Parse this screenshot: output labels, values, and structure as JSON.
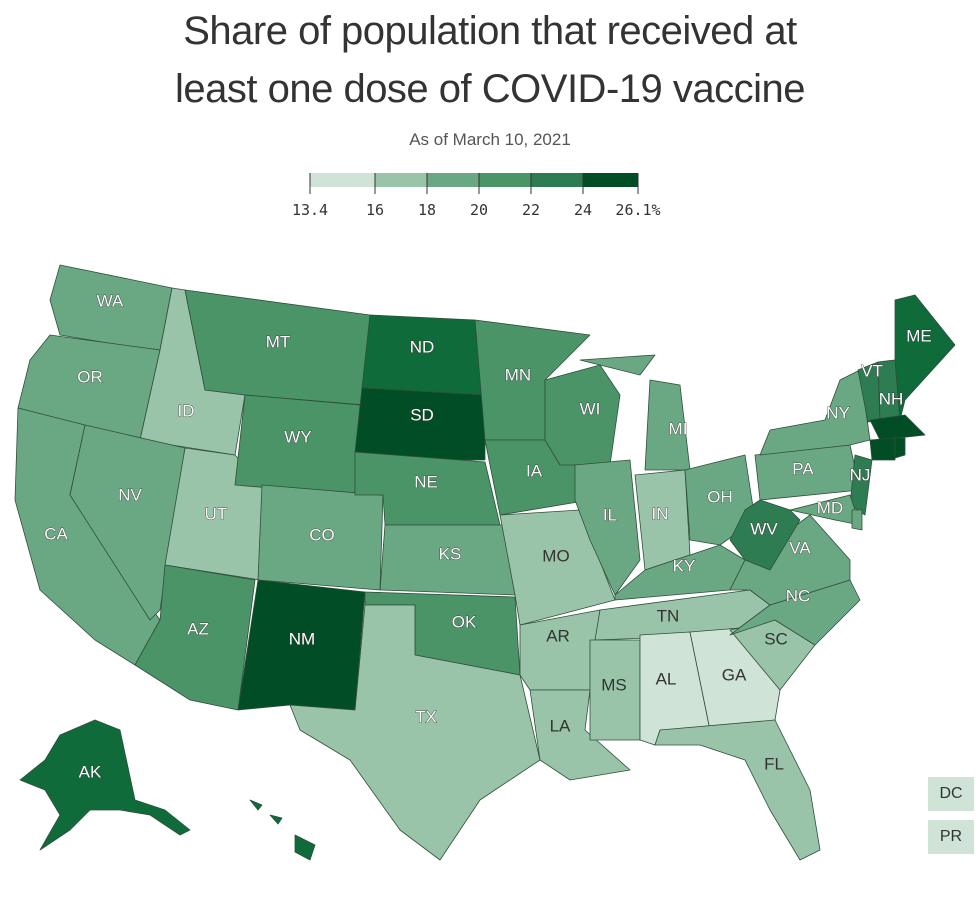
{
  "title_line1": "Share of population that received at",
  "title_line2": "least one dose of COVID-19 vaccine",
  "subtitle": "As of March 10, 2021",
  "legend": {
    "ticks": [
      "13.4",
      "16",
      "18",
      "20",
      "22",
      "24",
      "26.1%"
    ],
    "colors": [
      "#cfe3d7",
      "#9ac4a9",
      "#6aa884",
      "#4a9468",
      "#2e7d52",
      "#0f6b3a",
      "#004d26"
    ]
  },
  "states": {
    "WA": "WA",
    "OR": "OR",
    "CA": "CA",
    "ID": "ID",
    "NV": "NV",
    "UT": "UT",
    "AZ": "AZ",
    "MT": "MT",
    "WY": "WY",
    "CO": "CO",
    "NM": "NM",
    "ND": "ND",
    "SD": "SD",
    "NE": "NE",
    "KS": "KS",
    "OK": "OK",
    "TX": "TX",
    "MN": "MN",
    "IA": "IA",
    "MO": "MO",
    "AR": "AR",
    "LA": "LA",
    "WI": "WI",
    "IL": "IL",
    "MI": "MI",
    "IN": "IN",
    "OH": "OH",
    "KY": "KY",
    "TN": "TN",
    "MS": "MS",
    "AL": "AL",
    "GA": "GA",
    "FL": "FL",
    "SC": "SC",
    "NC": "NC",
    "VA": "VA",
    "WV": "WV",
    "PA": "PA",
    "NY": "NY",
    "VT": "VT",
    "NH": "NH",
    "ME": "ME",
    "MD": "MD",
    "NJ": "NJ",
    "AK": "AK"
  },
  "boxes": {
    "DC": "DC",
    "PR": "PR"
  }
}
